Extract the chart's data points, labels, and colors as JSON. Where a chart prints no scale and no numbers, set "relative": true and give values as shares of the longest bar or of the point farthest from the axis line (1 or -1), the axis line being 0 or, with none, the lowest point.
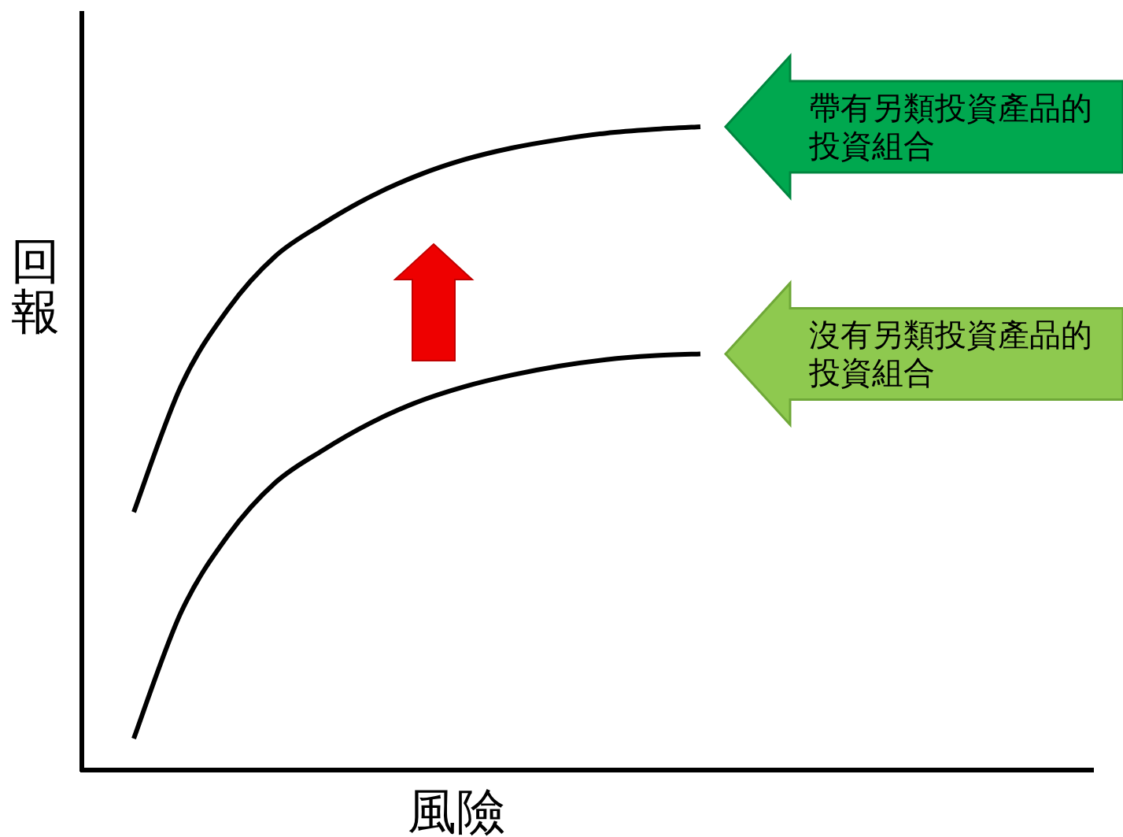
{
  "chart_data": {
    "type": "line",
    "relative": true,
    "xlabel": "風險",
    "ylabel": "回報",
    "categories": [
      null,
      null,
      null,
      null,
      null,
      null,
      null,
      null,
      null,
      null,
      null,
      null,
      null
    ],
    "series": [
      {
        "name": "帶有另類投資產品的投資組合",
        "color": "#000000",
        "values": [
          0.401,
          0.597,
          0.717,
          0.799,
          0.849,
          0.891,
          0.924,
          0.949,
          0.967,
          0.98,
          0.99,
          0.996,
          1.0
        ]
      },
      {
        "name": "沒有另類投資產品的投資組合",
        "color": "#000000",
        "values": [
          0.049,
          0.245,
          0.365,
          0.447,
          0.497,
          0.539,
          0.572,
          0.596,
          0.614,
          0.628,
          0.638,
          0.644,
          0.647
        ]
      }
    ]
  }
}
